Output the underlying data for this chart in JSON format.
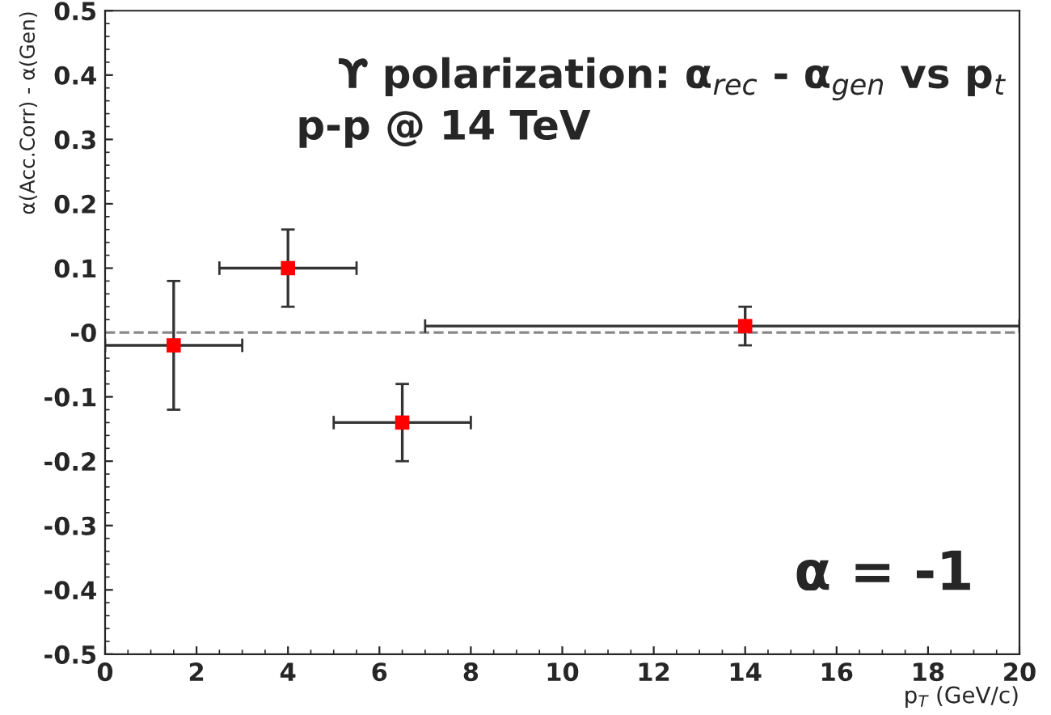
{
  "chart_data": {
    "type": "scatter",
    "x": [
      1.5,
      4,
      6.5,
      14
    ],
    "series": [
      {
        "color": "#ff0000",
        "values": [
          -0.02,
          0.1,
          -0.14,
          0.01
        ],
        "errors": [
          [
            -0.12,
            0.08
          ],
          [
            0.04,
            0.16
          ],
          [
            -0.2,
            -0.08
          ],
          [
            -0.02,
            0.04
          ]
        ],
        "xerrors": [
          [
            0,
            3
          ],
          [
            2.5,
            5.5
          ],
          [
            5,
            8
          ],
          [
            7,
            20
          ]
        ]
      }
    ],
    "marker": "square",
    "xlabel": "p$_{T}$ (GeV/c)",
    "ylabel": "α(Acc.Corr) - α(Gen)",
    "xlim": [
      0,
      20
    ],
    "ylim": [
      -0.5,
      0.5
    ],
    "xticks": [
      0,
      2,
      4,
      6,
      8,
      10,
      12,
      14,
      16,
      18,
      20
    ],
    "yticks": [
      -0.5,
      -0.4,
      -0.3,
      -0.2,
      -0.1,
      {
        "value": 0,
        "label": "-0"
      },
      0.1,
      0.2,
      0.3,
      0.4,
      0.5
    ],
    "ref_lines": [
      {
        "axis": "y",
        "value": 0,
        "color": "#888888",
        "line_style": "dashed"
      }
    ],
    "grid": false,
    "legend": false,
    "annotations": [
      "ϒ polarization: α$_{rec}$ - α$_{gen}$ vs p$_{t}$",
      "p-p @ 14 TeV",
      "α = -1"
    ]
  }
}
